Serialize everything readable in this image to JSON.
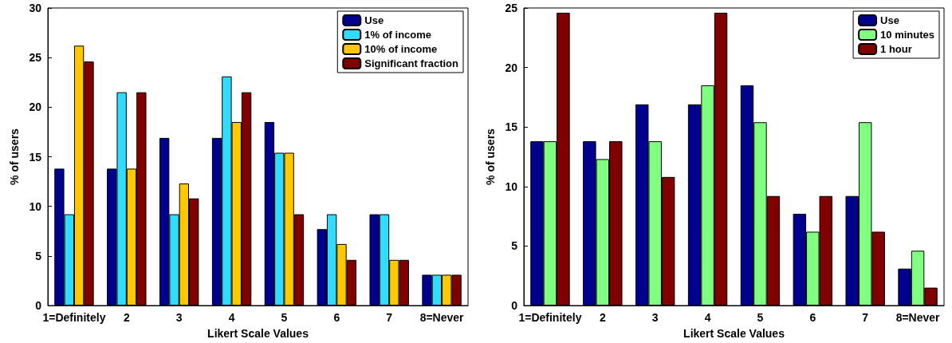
{
  "chart_data": [
    {
      "type": "bar",
      "xlabel": "Likert Scale Values",
      "ylabel": "% of users",
      "categories": [
        "1=Definitely",
        "2",
        "3",
        "4",
        "5",
        "6",
        "7",
        "8=Never"
      ],
      "ylim": [
        0,
        30
      ],
      "yticks": [
        0,
        5,
        10,
        15,
        20,
        25,
        30
      ],
      "grid": false,
      "legend": "top right",
      "series": [
        {
          "name": "Use",
          "color": "#00008f",
          "values": [
            13.8,
            13.8,
            16.9,
            16.9,
            18.5,
            7.7,
            9.2,
            3.1
          ]
        },
        {
          "name": "1% of income",
          "color": "#30dcff",
          "values": [
            9.2,
            21.5,
            9.2,
            23.1,
            15.4,
            9.2,
            9.2,
            3.1
          ]
        },
        {
          "name": "10% of income",
          "color": "#ffc800",
          "values": [
            26.2,
            13.8,
            12.3,
            18.5,
            15.4,
            6.2,
            4.6,
            3.1
          ]
        },
        {
          "name": "Significant fraction",
          "color": "#800000",
          "values": [
            24.6,
            21.5,
            10.8,
            21.5,
            9.2,
            4.6,
            4.6,
            3.1
          ]
        }
      ]
    },
    {
      "type": "bar",
      "xlabel": "Likert Scale Values",
      "ylabel": "% of users",
      "categories": [
        "1=Definitely",
        "2",
        "3",
        "4",
        "5",
        "6",
        "7",
        "8=Never"
      ],
      "ylim": [
        0,
        25
      ],
      "yticks": [
        0,
        5,
        10,
        15,
        20,
        25
      ],
      "grid": false,
      "legend": "top right",
      "series": [
        {
          "name": "Use",
          "color": "#00008f",
          "values": [
            13.8,
            13.8,
            16.9,
            16.9,
            18.5,
            7.7,
            9.2,
            3.1
          ]
        },
        {
          "name": "10 minutes",
          "color": "#80ff80",
          "values": [
            13.8,
            12.3,
            13.8,
            18.5,
            15.4,
            6.2,
            15.4,
            4.6
          ]
        },
        {
          "name": "1 hour",
          "color": "#800000",
          "values": [
            24.6,
            13.8,
            10.8,
            24.6,
            9.2,
            9.2,
            6.2,
            1.5
          ]
        }
      ]
    }
  ]
}
